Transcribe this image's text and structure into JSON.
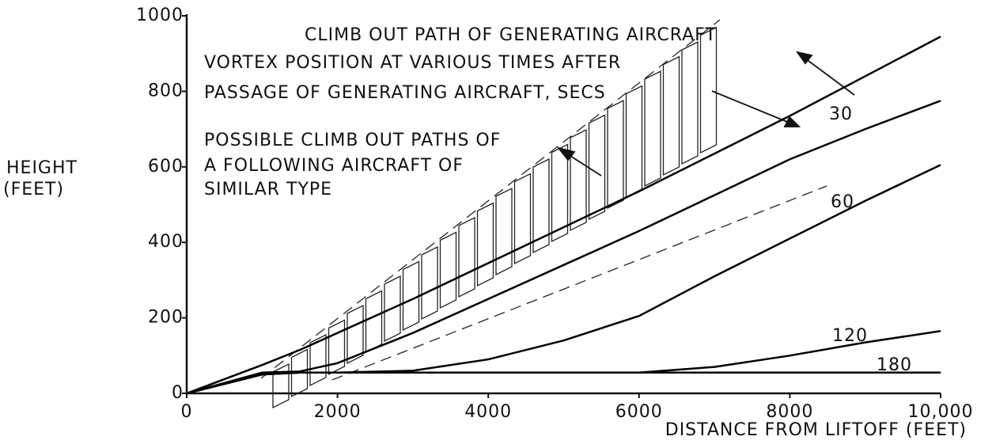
{
  "chart_data": {
    "type": "line",
    "y_label": [
      "HEIGHT",
      "(FEET)"
    ],
    "x_label": "DISTANCE FROM LIFTOFF (FEET)",
    "annotations": [
      [
        "VORTEX POSITION AT VARIOUS TIMES AFTER",
        "PASSAGE OF GENERATING AIRCRAFT, SECS"
      ],
      [
        "POSSIBLE CLIMB OUT PATHS OF",
        "A FOLLOWING AIRCRAFT OF",
        "SIMILAR TYPE"
      ]
    ],
    "x": [
      0,
      1000,
      1500,
      2000,
      3000,
      4000,
      5000,
      6000,
      7000,
      8000,
      9000,
      10000
    ],
    "series": [
      {
        "name": "CLIMB OUT PATH OF GENERATING AIRCRAFT",
        "color": "#000000",
        "values": [
          0,
          75,
          115,
          160,
          250,
          345,
          440,
          535,
          635,
          735,
          840,
          945
        ]
      },
      {
        "name": "30",
        "color": "#000000",
        "values": [
          0,
          55,
          58,
          80,
          160,
          250,
          340,
          430,
          525,
          620,
          700,
          775
        ]
      },
      {
        "name": "60",
        "color": "#000000",
        "values": [
          0,
          50,
          55,
          55,
          60,
          90,
          140,
          205,
          310,
          410,
          510,
          605
        ]
      },
      {
        "name": "120",
        "color": "#000000",
        "values": [
          0,
          50,
          55,
          55,
          55,
          55,
          55,
          55,
          70,
          100,
          135,
          165
        ]
      },
      {
        "name": "180",
        "color": "#000000",
        "values": [
          0,
          50,
          55,
          55,
          55,
          55,
          55,
          55,
          55,
          55,
          55,
          55
        ]
      }
    ],
    "xlim": [
      0,
      10000
    ],
    "ylim": [
      0,
      1000
    ],
    "xticks": [
      0,
      2000,
      4000,
      6000,
      8000,
      {
        "value": 10000,
        "label": "10,000"
      }
    ],
    "yticks": [
      0,
      200,
      400,
      600,
      800,
      1000
    ]
  }
}
